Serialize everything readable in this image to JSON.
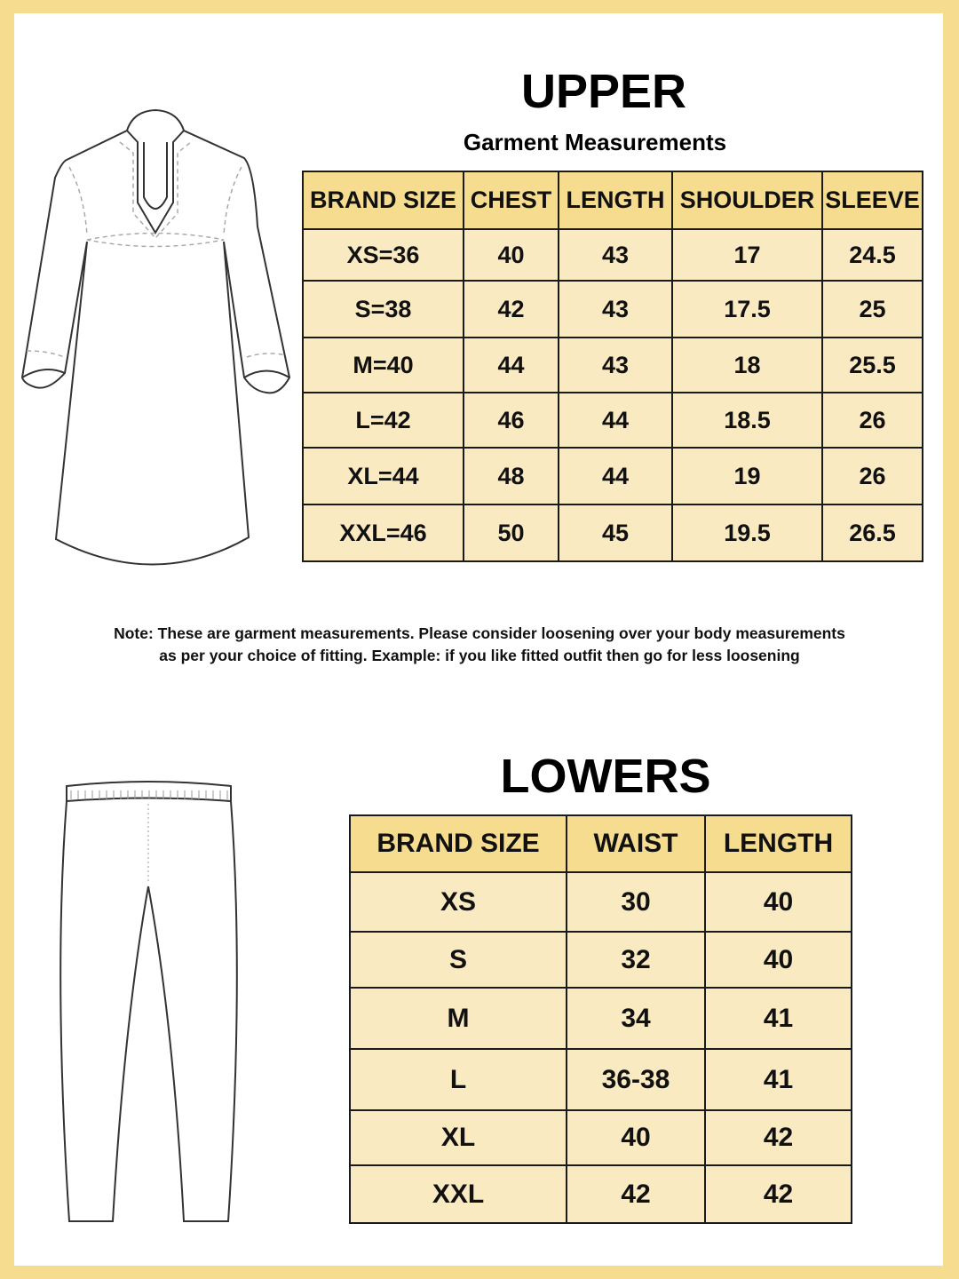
{
  "upper": {
    "title": "UPPER",
    "subtitle": "Garment Measurements",
    "headers": [
      "BRAND SIZE",
      "CHEST",
      "LENGTH",
      "SHOULDER",
      "SLEEVE"
    ],
    "rows": [
      [
        "XS=36",
        "40",
        "43",
        "17",
        "24.5"
      ],
      [
        "S=38",
        "42",
        "43",
        "17.5",
        "25"
      ],
      [
        "M=40",
        "44",
        "43",
        "18",
        "25.5"
      ],
      [
        "L=42",
        "46",
        "44",
        "18.5",
        "26"
      ],
      [
        "XL=44",
        "48",
        "44",
        "19",
        "26"
      ],
      [
        "XXL=46",
        "50",
        "45",
        "19.5",
        "26.5"
      ]
    ]
  },
  "note": {
    "line1": "Note: These are garment measurements. Please consider loosening over your body measurements",
    "line2": "as per your choice of fitting. Example: if you like fitted outfit then go for less loosening"
  },
  "lowers": {
    "title": "LOWERS",
    "headers": [
      "BRAND SIZE",
      "WAIST",
      "LENGTH"
    ],
    "rows": [
      [
        "XS",
        "30",
        "40"
      ],
      [
        "S",
        "32",
        "40"
      ],
      [
        "M",
        "34",
        "41"
      ],
      [
        "L",
        "36-38",
        "41"
      ],
      [
        "XL",
        "40",
        "42"
      ],
      [
        "XXL",
        "42",
        "42"
      ]
    ]
  },
  "colors": {
    "frame": "#f5dc8f",
    "header": "#f5dc8f",
    "row": "#faeac2"
  }
}
